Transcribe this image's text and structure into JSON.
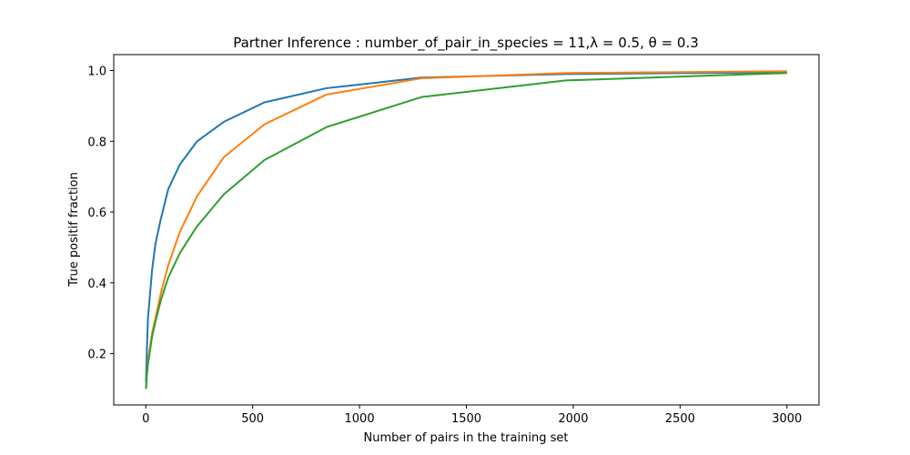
{
  "chart_data": {
    "type": "line",
    "title": "Partner Inference : number_of_pair_in_species = 11,λ = 0.5, θ = 0.3",
    "xlabel": "Number of pairs in the training set",
    "ylabel": "True positif fraction",
    "xlim": [
      -150,
      3150
    ],
    "ylim": [
      0.055,
      1.045
    ],
    "xticks": [
      0,
      500,
      1000,
      1500,
      2000,
      2500,
      3000
    ],
    "yticks": [
      0.2,
      0.4,
      0.6,
      0.8,
      1.0
    ],
    "xtick_labels": [
      "0",
      "500",
      "1000",
      "1500",
      "2000",
      "2500",
      "3000"
    ],
    "ytick_labels": [
      "0.2",
      "0.4",
      "0.6",
      "0.8",
      "1.0"
    ],
    "grid": false,
    "series": [
      {
        "color": "#1f77b4",
        "x": [
          1,
          5,
          10,
          20,
          30,
          45,
          70,
          105,
          160,
          240,
          365,
          555,
          845,
          1290,
          1965,
          3000
        ],
        "y": [
          0.12,
          0.21,
          0.3,
          0.37,
          0.44,
          0.51,
          0.58,
          0.665,
          0.735,
          0.8,
          0.855,
          0.91,
          0.95,
          0.98,
          0.99,
          0.995
        ]
      },
      {
        "color": "#ff7f0e",
        "x": [
          1,
          5,
          10,
          20,
          30,
          45,
          70,
          105,
          160,
          240,
          365,
          555,
          845,
          1290,
          1965,
          3000
        ],
        "y": [
          0.1,
          0.14,
          0.18,
          0.22,
          0.26,
          0.3,
          0.37,
          0.45,
          0.545,
          0.645,
          0.755,
          0.848,
          0.932,
          0.978,
          0.993,
          0.998
        ]
      },
      {
        "color": "#2ca02c",
        "x": [
          1,
          5,
          10,
          20,
          30,
          45,
          70,
          105,
          160,
          240,
          365,
          555,
          845,
          1290,
          1965,
          3000
        ],
        "y": [
          0.1,
          0.14,
          0.17,
          0.21,
          0.25,
          0.29,
          0.35,
          0.415,
          0.485,
          0.56,
          0.65,
          0.747,
          0.84,
          0.925,
          0.972,
          0.993
        ]
      }
    ]
  }
}
